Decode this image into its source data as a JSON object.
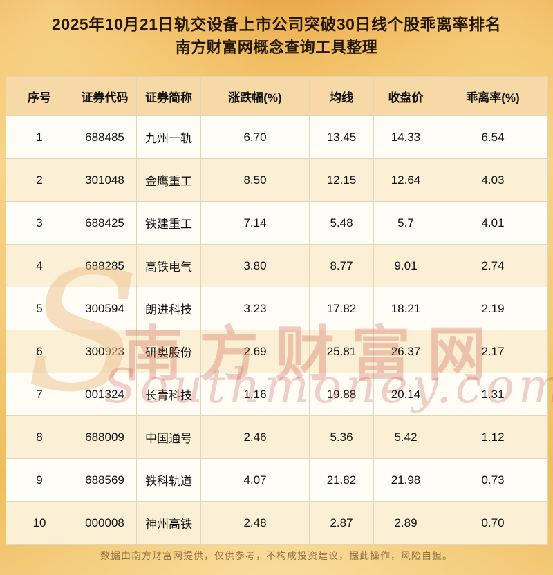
{
  "header": {
    "title_line1": "2025年10月21日轨交设备上市公司突破30日线个股乖离率排名",
    "title_line2": "南方财富网概念查询工具整理"
  },
  "chart_data": {
    "type": "table",
    "title": "2025年10月21日轨交设备上市公司突破30日线个股乖离率排名",
    "columns": [
      "序号",
      "证券代码",
      "证券简称",
      "涨跌幅(%)",
      "均线",
      "收盘价",
      "乖离率(%)"
    ],
    "rows": [
      [
        "1",
        "688485",
        "九州一轨",
        "6.70",
        "13.45",
        "14.33",
        "6.54"
      ],
      [
        "2",
        "301048",
        "金鹰重工",
        "8.50",
        "12.15",
        "12.64",
        "4.03"
      ],
      [
        "3",
        "688425",
        "铁建重工",
        "7.14",
        "5.48",
        "5.7",
        "4.01"
      ],
      [
        "4",
        "688285",
        "高铁电气",
        "3.80",
        "8.77",
        "9.01",
        "2.74"
      ],
      [
        "5",
        "300594",
        "朗进科技",
        "3.23",
        "17.82",
        "18.21",
        "2.19"
      ],
      [
        "6",
        "300923",
        "研奥股份",
        "2.69",
        "25.81",
        "26.37",
        "2.17"
      ],
      [
        "7",
        "001324",
        "长青科技",
        "1.16",
        "19.88",
        "20.14",
        "1.31"
      ],
      [
        "8",
        "688009",
        "中国通号",
        "2.46",
        "5.36",
        "5.42",
        "1.12"
      ],
      [
        "9",
        "688569",
        "铁科轨道",
        "4.07",
        "21.82",
        "21.98",
        "0.73"
      ],
      [
        "10",
        "000008",
        "神州高铁",
        "2.48",
        "2.87",
        "2.89",
        "0.70"
      ]
    ]
  },
  "watermark": {
    "s": "S",
    "cn": "南方财富网",
    "en": "Southmoney.com"
  },
  "footer": {
    "disclaimer": "数据由南方财富网提供，仅供参考，不构成投资建议，据此操作，风险自担。"
  },
  "colors": {
    "background_gold": "#f0bd5e",
    "header_row": "#f6d9a6",
    "row_alt": "#fbf0d5",
    "title_text": "#241803",
    "watermark_red": "#c64e3e",
    "footer_text": "#8f7140"
  }
}
